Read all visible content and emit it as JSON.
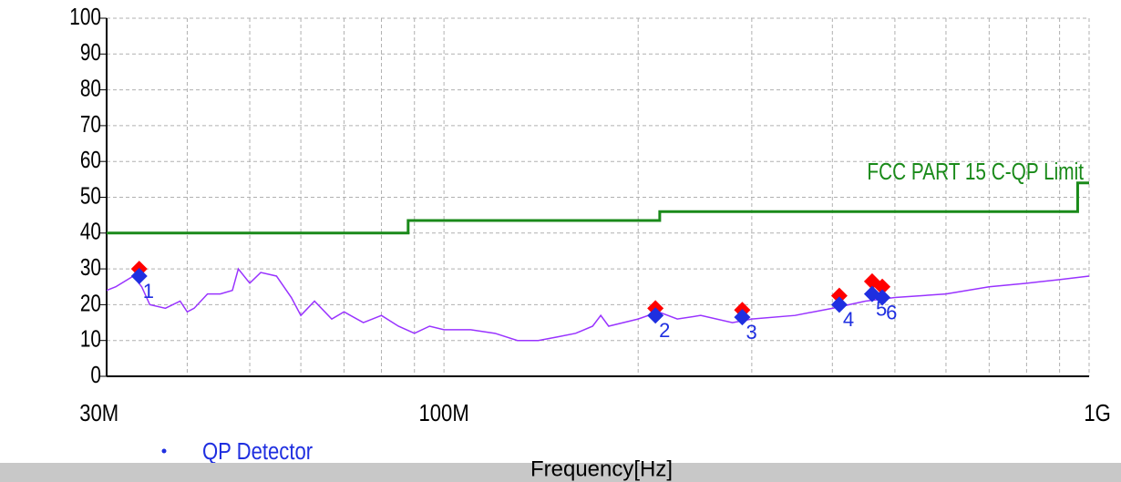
{
  "chart_data": {
    "type": "line",
    "xlabel": "Frequency[Hz]",
    "xlog": true,
    "xlim": [
      30000000,
      1000000000
    ],
    "xticks": [
      {
        "value": 30000000,
        "label": "30M"
      },
      {
        "value": 100000000,
        "label": "100M"
      },
      {
        "value": 1000000000,
        "label": "1G"
      }
    ],
    "xminor": [
      40000000,
      50000000,
      60000000,
      70000000,
      80000000,
      90000000,
      200000000,
      300000000,
      400000000,
      500000000,
      600000000,
      700000000,
      800000000,
      900000000
    ],
    "ylim": [
      0,
      100
    ],
    "yticks": [
      0,
      10,
      20,
      30,
      40,
      50,
      60,
      70,
      80,
      90,
      100
    ],
    "grid": true,
    "series": [
      {
        "name": "FCC PART 15 C-QP Limit",
        "style": "line",
        "color": "#1a8a1a",
        "x": [
          30000000,
          88000000,
          88000000,
          216000000,
          216000000,
          960000000,
          960000000,
          1000000000
        ],
        "values": [
          40,
          40,
          43.5,
          43.5,
          46,
          46,
          54,
          54
        ]
      },
      {
        "style": "line",
        "color": "#9933ff",
        "x": [
          30000000,
          31000000,
          33000000,
          34000000,
          35000000,
          37000000,
          39000000,
          40000000,
          41000000,
          43000000,
          45000000,
          47000000,
          48000000,
          50000000,
          52000000,
          55000000,
          58000000,
          60000000,
          63000000,
          67000000,
          70000000,
          75000000,
          80000000,
          85000000,
          90000000,
          95000000,
          100000000,
          110000000,
          120000000,
          130000000,
          140000000,
          150000000,
          160000000,
          170000000,
          175000000,
          180000000,
          200000000,
          215000000,
          230000000,
          250000000,
          280000000,
          300000000,
          350000000,
          400000000,
          450000000,
          500000000,
          600000000,
          700000000,
          800000000,
          900000000,
          1000000000
        ],
        "values": [
          24,
          25,
          28,
          25,
          20,
          19,
          21,
          18,
          19,
          23,
          23,
          24,
          30,
          26,
          29,
          28,
          22,
          17,
          21,
          16,
          18,
          15,
          17,
          14,
          12,
          14,
          13,
          13,
          12,
          10,
          10,
          11,
          12,
          14,
          17,
          14,
          16,
          18,
          16,
          17,
          15,
          16,
          17,
          19,
          21,
          22,
          23,
          25,
          26,
          27,
          28
        ]
      },
      {
        "style": "marker",
        "color": "#ff0000",
        "x": [
          33700000,
          212700000,
          290000000,
          410000000,
          461000000,
          478000000
        ],
        "values": [
          30,
          19,
          18.5,
          22.5,
          26.5,
          25
        ]
      },
      {
        "name": "QP Detector",
        "style": "marker",
        "color": "#1f2fe0",
        "x": [
          33700000,
          212700000,
          290000000,
          410000000,
          461000000,
          478000000
        ],
        "values": [
          28,
          17,
          16.5,
          20,
          23,
          22
        ],
        "labels": [
          "1",
          "2",
          "3",
          "4",
          "5",
          "6"
        ]
      }
    ]
  }
}
